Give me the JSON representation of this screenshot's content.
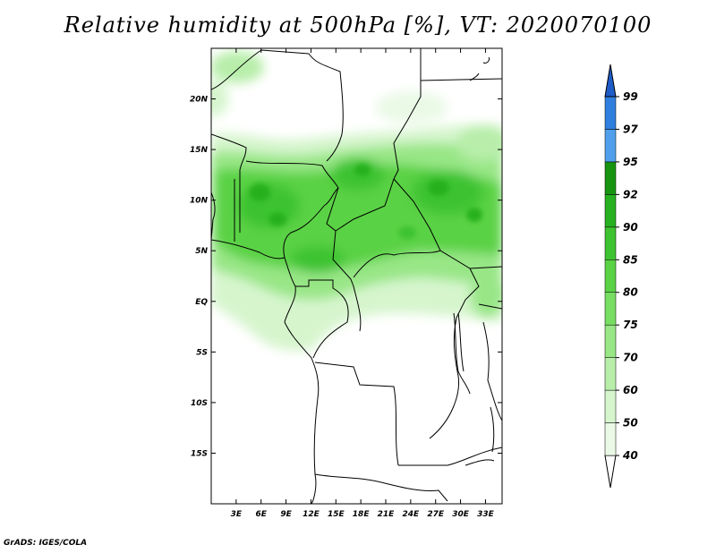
{
  "title": "Relative humidity at 500hPa [%], VT: 2020070100",
  "credit": "GrADS: IGES/COLA",
  "chart_data": {
    "type": "heatmap",
    "variable": "Relative humidity at 500hPa",
    "unit": "%",
    "valid_time": "2020070100",
    "lon_range": [
      0,
      35
    ],
    "lat_range": [
      -20,
      25
    ],
    "lon_ticks": [
      "3E",
      "6E",
      "9E",
      "12E",
      "15E",
      "18E",
      "21E",
      "24E",
      "27E",
      "30E",
      "33E"
    ],
    "lon_tick_values": [
      3,
      6,
      9,
      12,
      15,
      18,
      21,
      24,
      27,
      30,
      33
    ],
    "lat_ticks": [
      "20N",
      "15N",
      "10N",
      "5N",
      "EQ",
      "5S",
      "10S",
      "15S"
    ],
    "lat_tick_values": [
      20,
      15,
      10,
      5,
      0,
      -5,
      -10,
      -15
    ],
    "colorbar": {
      "levels": [
        "40",
        "50",
        "60",
        "70",
        "75",
        "80",
        "85",
        "90",
        "92",
        "95",
        "97",
        "99"
      ],
      "colors": [
        "#ffffff",
        "#eaf9e6",
        "#d6f5cd",
        "#b8eeaa",
        "#98e686",
        "#78dd63",
        "#5ad245",
        "#3ec330",
        "#27b01f",
        "#179511",
        "#4f9fec",
        "#2f7fdf",
        "#1e5cc8"
      ]
    }
  }
}
